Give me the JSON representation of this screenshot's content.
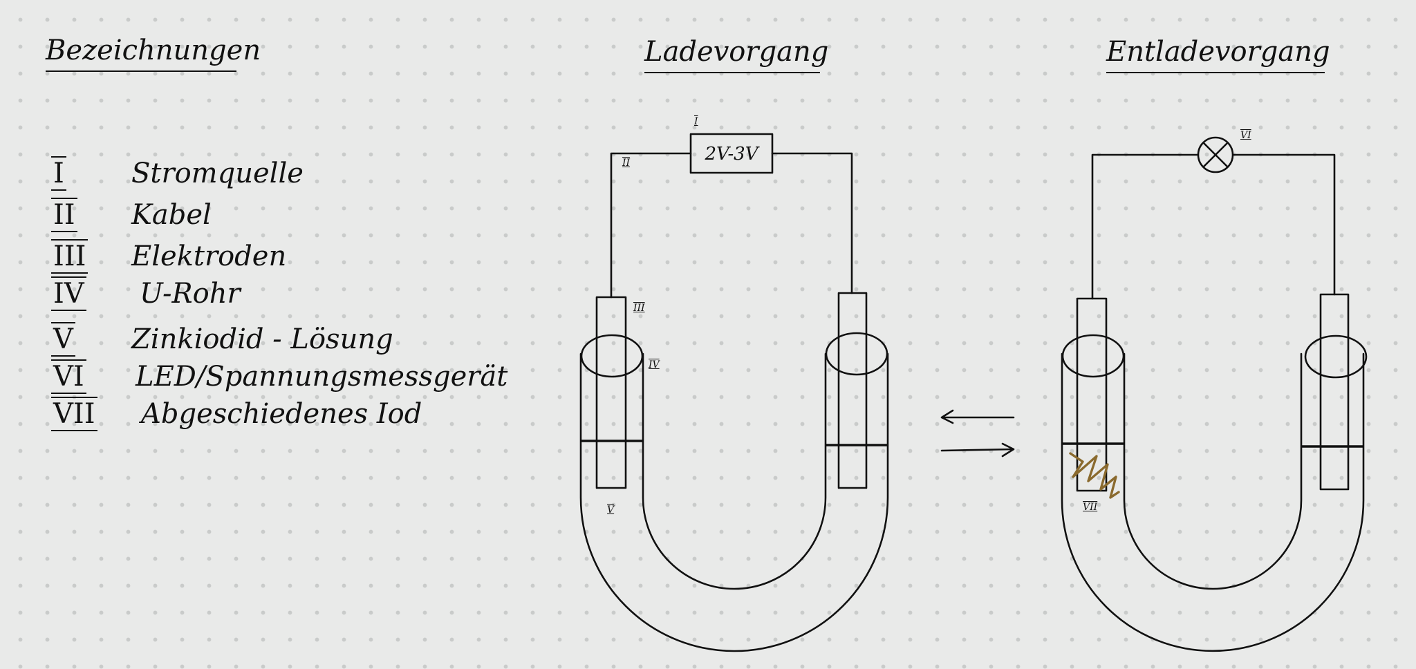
{
  "legend": {
    "title": "Bezeichnungen",
    "items": [
      {
        "num": "I",
        "text": "Stromquelle"
      },
      {
        "num": "II",
        "text": "Kabel"
      },
      {
        "num": "III",
        "text": "Elektroden"
      },
      {
        "num": "IV",
        "text": "U-Rohr"
      },
      {
        "num": "V",
        "text": "Zinkiodid - Lösung"
      },
      {
        "num": "VI",
        "text": "LED/Spannungsmessgerät"
      },
      {
        "num": "VII",
        "text": "Abgeschiedenes Iod"
      }
    ]
  },
  "charging": {
    "title": "Ladevorgang",
    "source_label": "2V-3V",
    "tags": {
      "source": "I",
      "cable": "II",
      "electrode": "III",
      "tube": "IV",
      "solution": "V"
    }
  },
  "discharging": {
    "title": "Entladevorgang",
    "tags": {
      "lamp": "VI",
      "iodine": "VII"
    }
  },
  "colors": {
    "ink": "#111111",
    "iodine": "#8a6a2e",
    "paper": "#e9eae9"
  },
  "icons": {
    "lamp": "lamp-cross-circle-icon",
    "arrows": "equilibrium-arrows-icon"
  }
}
